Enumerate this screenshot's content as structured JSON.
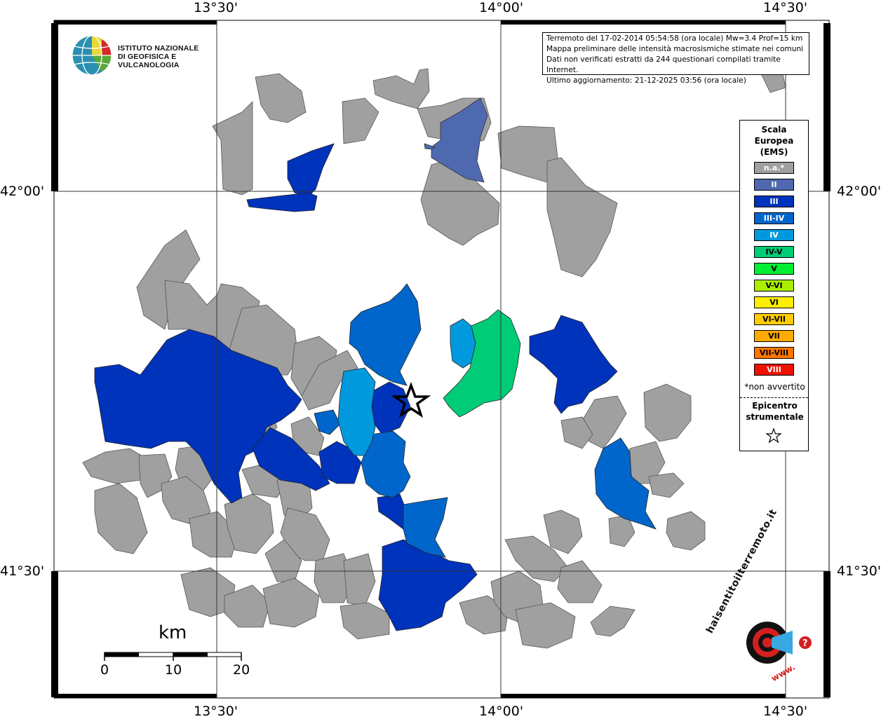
{
  "coordinates": {
    "top": [
      "13°30'",
      "14°00'",
      "14°30'"
    ],
    "bottom": [
      "13°30'",
      "14°00'",
      "14°30'"
    ],
    "left": [
      "42°00'",
      "41°30'"
    ],
    "right": [
      "42°00'",
      "41°30'"
    ]
  },
  "logo": {
    "line1": "ISTITUTO NAZIONALE",
    "line2": "DI GEOFISICA E VULCANOLOGIA"
  },
  "info": {
    "line1": "Terremoto del 17-02-2014 05:54:58 (ora locale) Mw=3.4 Prof=15 km",
    "line2": "Mappa preliminare delle intensità macrosismiche stimate nei comuni",
    "line3": "Dati non verificati estratti da 244 questionari compilati tramite Internet.",
    "line4": "Ultimo aggiornamento: 21-12-2025 03:56 (ora locale)"
  },
  "legend": {
    "title_line1": "Scala",
    "title_line2": "Europea",
    "title_line3": "(EMS)",
    "items": [
      {
        "label": "n.a.*",
        "color": "#a0a0a0",
        "text_color": "#ffffff"
      },
      {
        "label": "II",
        "color": "#4f69b0",
        "text_color": "#ffffff"
      },
      {
        "label": "III",
        "color": "#0033bb",
        "text_color": "#ffffff"
      },
      {
        "label": "III-IV",
        "color": "#0066cc",
        "text_color": "#ffffff"
      },
      {
        "label": "IV",
        "color": "#0099dd",
        "text_color": "#ffffff"
      },
      {
        "label": "IV-V",
        "color": "#00cc77",
        "text_color": "#000000"
      },
      {
        "label": "V",
        "color": "#00ee33",
        "text_color": "#000000"
      },
      {
        "label": "V-VI",
        "color": "#aaee00",
        "text_color": "#000000"
      },
      {
        "label": "VI",
        "color": "#ffee00",
        "text_color": "#000000"
      },
      {
        "label": "VI-VII",
        "color": "#ffcc00",
        "text_color": "#000000"
      },
      {
        "label": "VII",
        "color": "#ffaa00",
        "text_color": "#000000"
      },
      {
        "label": "VII-VIII",
        "color": "#ff7700",
        "text_color": "#000000"
      },
      {
        "label": "VIII",
        "color": "#ee1100",
        "text_color": "#ffffff"
      }
    ],
    "note": "*non avvertito",
    "epicenter_line1": "Epicentro",
    "epicenter_line2": "strumentale"
  },
  "scalebar": {
    "unit": "km",
    "ticks": [
      "0",
      "10",
      "20"
    ]
  },
  "site_logo": {
    "text": "haisentitoilterremoto.it",
    "url_text": "www."
  },
  "colors": {
    "na": "#a0a0a0",
    "II": "#4f69b0",
    "III": "#0033bb",
    "III-IV": "#0066cc",
    "IV": "#0099dd",
    "IV-V": "#00cc77"
  }
}
